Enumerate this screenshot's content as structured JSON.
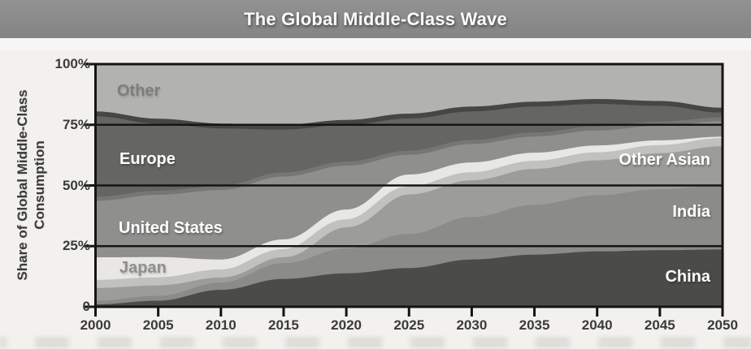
{
  "title": "The Global Middle-Class Wave",
  "y_axis": {
    "title_line1": "Share of Global Middle-Class",
    "title_line2": "Consumption",
    "ticks": [
      "100%",
      "75%",
      "50%",
      "25%",
      "0"
    ],
    "tick_values": [
      100,
      75,
      50,
      25,
      0
    ]
  },
  "x_axis": {
    "ticks": [
      "2000",
      "2005",
      "2010",
      "2015",
      "2020",
      "2025",
      "2030",
      "2035",
      "2040",
      "2045",
      "2050"
    ]
  },
  "colors": {
    "title_bar": "#8c8c8c",
    "background": "#f2f1ee",
    "axis_line": "#141414",
    "gridline": "#161616",
    "tick_text": "#3b3b3b"
  },
  "chart_data": {
    "type": "area",
    "stacked": true,
    "title": "The Global Middle-Class Wave",
    "ylabel": "Share of Global Middle-Class Consumption",
    "ylim": [
      0,
      100
    ],
    "grid": "horizontal lines at 25, 50, 75",
    "legend_position": "labels drawn inside bands",
    "x": [
      2000,
      2005,
      2010,
      2015,
      2020,
      2025,
      2030,
      2035,
      2040,
      2045,
      2050
    ],
    "series": [
      {
        "name": "China",
        "values": [
          1.0,
          2.5,
          7.0,
          11.5,
          13.8,
          16.0,
          19.5,
          21.5,
          22.8,
          23.3,
          23.6
        ],
        "color": "#4b4b49",
        "label_color": "#ffffff"
      },
      {
        "name": "India",
        "values": [
          1.5,
          2.0,
          3.0,
          6.5,
          10.2,
          14.0,
          17.5,
          20.5,
          23.2,
          25.2,
          26.5
        ],
        "color": "#8b8b89",
        "label_color": "#ffffff"
      },
      {
        "name": "Other Asian",
        "values": [
          6.9,
          6.0,
          3.7,
          4.1,
          10.4,
          18.0,
          16.8,
          16.5,
          16.0,
          16.5,
          17.8
        ],
        "color": "#9c9c9a",
        "edge_color": "#c1c1bf",
        "label_color": "#ffffff"
      },
      {
        "name": "Japan",
        "values": [
          11.0,
          10.0,
          5.8,
          5.7,
          5.7,
          6.5,
          5.7,
          5.0,
          4.5,
          3.6,
          2.2
        ],
        "color": "#e9e7e3",
        "label_color": "#8e8e8e"
      },
      {
        "name": "United States",
        "values": [
          24.1,
          26.5,
          29.5,
          26.7,
          18.9,
          9.0,
          8.4,
          7.5,
          7.0,
          6.9,
          7.2
        ],
        "color": "#8f8f8d",
        "edge_color": "#767674",
        "label_color": "#ffffff"
      },
      {
        "name": "Europe",
        "values": [
          35.0,
          29.5,
          25.5,
          19.5,
          17.0,
          15.1,
          13.6,
          12.5,
          11.1,
          8.3,
          3.7
        ],
        "color": "#656563",
        "edge_color": "#464644",
        "label_color": "#ffffff"
      },
      {
        "name": "Other",
        "values": [
          20.5,
          23.5,
          25.5,
          26.0,
          24.0,
          21.4,
          18.5,
          16.5,
          15.4,
          16.2,
          19.0
        ],
        "color": "#b2b2b0",
        "label_color": "#7e7e7e"
      }
    ]
  }
}
